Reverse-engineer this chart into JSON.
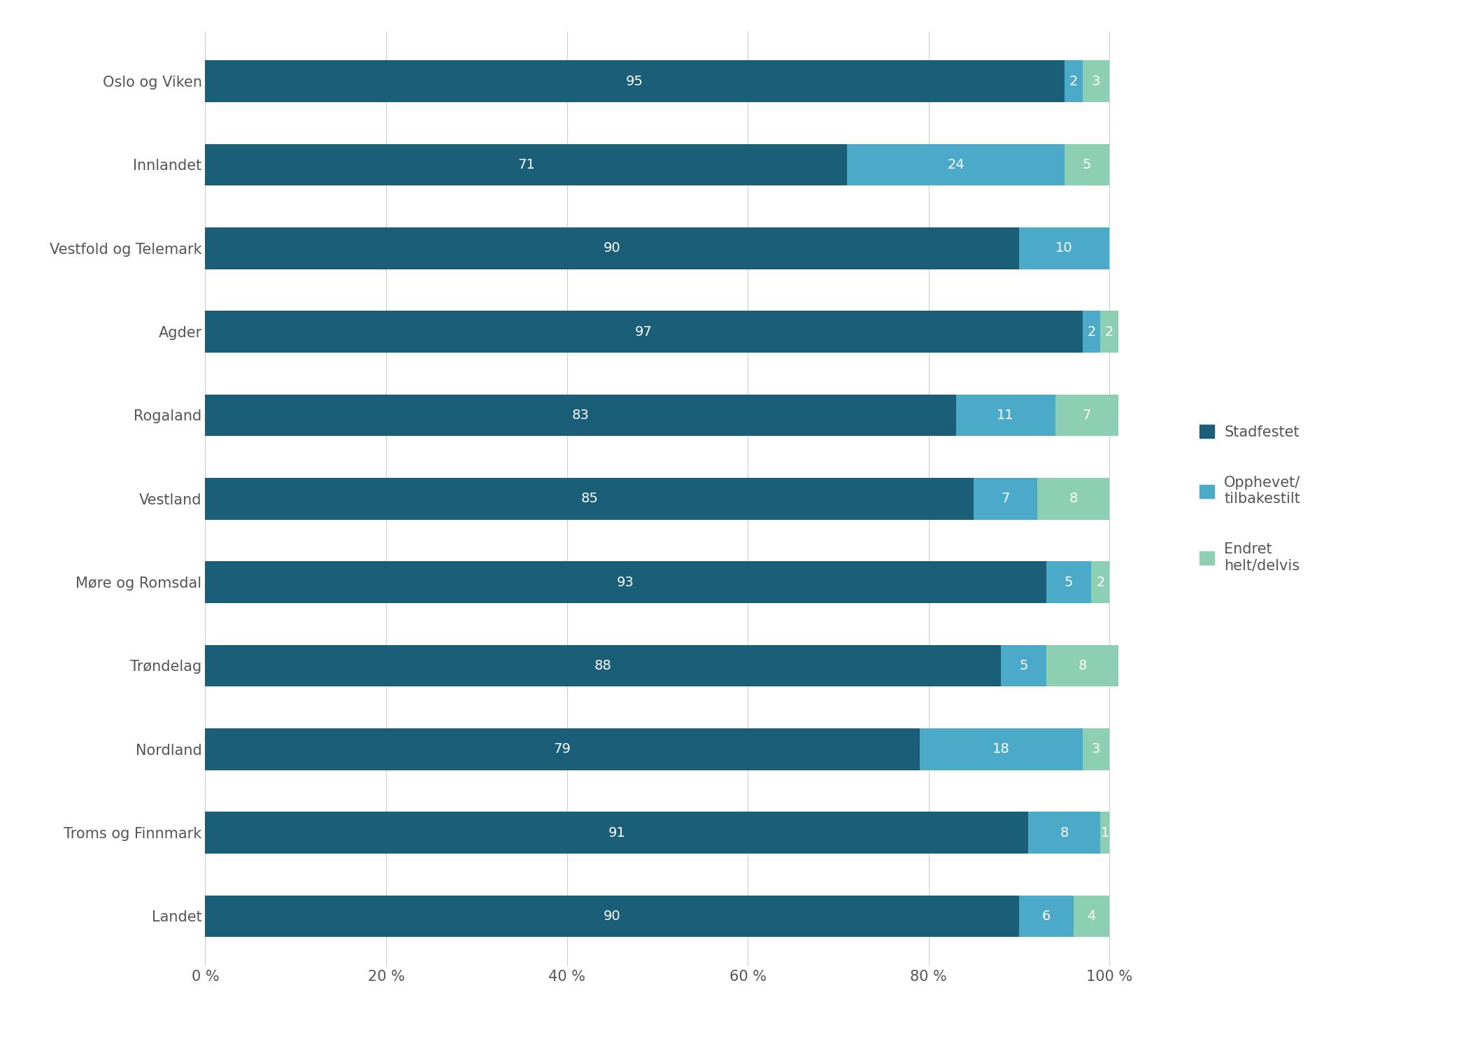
{
  "categories": [
    "Oslo og Viken",
    "Innlandet",
    "Vestfold og Telemark",
    "Agder",
    "Rogaland",
    "Vestland",
    "Møre og Romsdal",
    "Trøndelag",
    "Nordland",
    "Troms og Finnmark",
    "Landet"
  ],
  "stadfestet": [
    95,
    71,
    90,
    97,
    83,
    85,
    93,
    88,
    79,
    91,
    90
  ],
  "opphevet": [
    2,
    24,
    10,
    2,
    11,
    7,
    5,
    5,
    18,
    8,
    6
  ],
  "endret": [
    3,
    5,
    0,
    2,
    7,
    8,
    2,
    8,
    3,
    1,
    4
  ],
  "color_stadfestet": "#1a5e78",
  "color_opphevet": "#4aaac8",
  "color_endret": "#8dcfb2",
  "background_color": "#ffffff",
  "legend_labels": [
    "Stadfestet",
    "Opphevet/\ntilbakestilt",
    "Endret\nhelt/delvis"
  ],
  "xtick_labels": [
    "0 %",
    "20 %",
    "40 %",
    "60 %",
    "80 %",
    "100 %"
  ],
  "xtick_values": [
    0,
    20,
    40,
    60,
    80,
    100
  ],
  "bar_height": 0.5,
  "fontsize_ticks": 15,
  "fontsize_legend": 15,
  "fontsize_bar_text": 14
}
